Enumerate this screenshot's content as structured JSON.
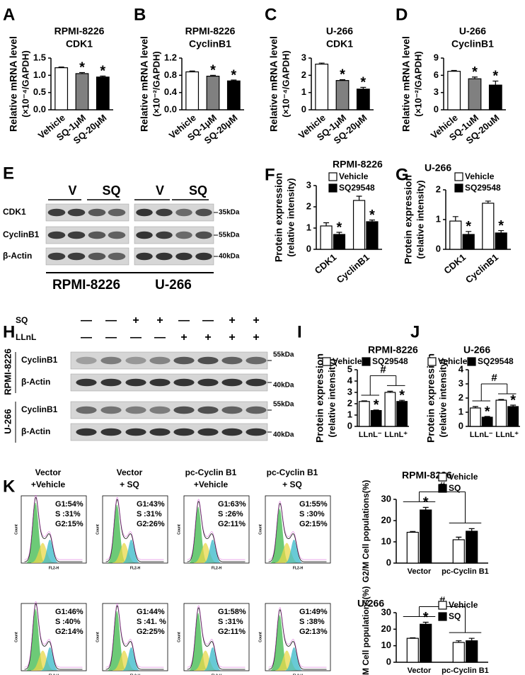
{
  "panel_labels": [
    "A",
    "B",
    "C",
    "D",
    "E",
    "F",
    "G",
    "H",
    "I",
    "J",
    "K"
  ],
  "chart_data": [
    {
      "type": "bar",
      "title": "RPMI-8226",
      "subtitle": "CDK1",
      "y_label": "Relative mRNA level",
      "y_label2": "(×10⁻⁴/GAPDH)",
      "categories": [
        "Vehicle",
        "SQ-1μM",
        "SQ-20μM"
      ],
      "values": [
        1.22,
        1.05,
        0.95
      ],
      "errors": [
        0.02,
        0.03,
        0.03
      ],
      "significance": [
        null,
        "*",
        "*"
      ],
      "colors": [
        "#ffffff",
        "#808080",
        "#000000"
      ],
      "ylim": [
        0,
        1.5
      ],
      "yticks": [
        {
          "value": 0,
          "label": "0.0"
        },
        0.5,
        {
          "value": 1,
          "label": "1.0"
        },
        1.5
      ]
    },
    {
      "type": "bar",
      "title": "RPMI-8226",
      "subtitle": "CyclinB1",
      "y_label": "Relative mRNA level",
      "y_label2": "(×10⁻²/GAPDH)",
      "categories": [
        "Vehicle",
        "SQ-1μM",
        "SQ-20μM"
      ],
      "values": [
        0.88,
        0.78,
        0.67
      ],
      "errors": [
        0.02,
        0.02,
        0.02
      ],
      "significance": [
        null,
        "*",
        "*"
      ],
      "colors": [
        "#ffffff",
        "#808080",
        "#000000"
      ],
      "ylim": [
        0,
        1.2
      ],
      "yticks": [
        {
          "value": 0,
          "label": "0.0"
        },
        0.4,
        0.8,
        1.2
      ]
    },
    {
      "type": "bar",
      "title": "U-266",
      "subtitle": "CDK1",
      "y_label": "Relative mRNA level",
      "y_label2": "(×10⁻⁴/GAPDH)",
      "categories": [
        "Vehicle",
        "SQ-1μM",
        "SQ-20μM"
      ],
      "values": [
        2.65,
        1.7,
        1.2
      ],
      "errors": [
        0.06,
        0.05,
        0.1
      ],
      "significance": [
        null,
        "*",
        "*"
      ],
      "colors": [
        "#ffffff",
        "#808080",
        "#000000"
      ],
      "ylim": [
        0,
        3
      ],
      "yticks": [
        0,
        1,
        2,
        3
      ]
    },
    {
      "type": "bar",
      "title": "U-266",
      "subtitle": "CyclinB1",
      "y_label": "Relative mRNA level",
      "y_label2": "(×10⁻²/GAPDH)",
      "categories": [
        "Vehicle",
        "SQ-1uM",
        "SQ-20uM"
      ],
      "values": [
        6.7,
        5.4,
        4.3
      ],
      "errors": [
        0.15,
        0.3,
        0.7
      ],
      "significance": [
        null,
        "*",
        "*"
      ],
      "colors": [
        "#ffffff",
        "#808080",
        "#000000"
      ],
      "ylim": [
        0,
        9
      ],
      "yticks": [
        0,
        3,
        6,
        9
      ]
    },
    {
      "type": "bar",
      "title": "RPMI-8226",
      "y_label": "Protein expression",
      "y_label2": "(relative intensity)",
      "categories": [
        "CDK1",
        "CyclinB1"
      ],
      "series": [
        {
          "name": "Vehicle",
          "color": "#ffffff",
          "values": [
            1.1,
            2.3
          ],
          "errors": [
            0.15,
            0.2
          ]
        },
        {
          "name": "SQ29548",
          "color": "#000000",
          "values": [
            0.7,
            1.3
          ],
          "errors": [
            0.1,
            0.08
          ],
          "significance": [
            "*",
            "*"
          ]
        }
      ],
      "ylim": [
        0,
        3
      ],
      "yticks": [
        0,
        1,
        2,
        3
      ]
    },
    {
      "type": "bar",
      "title": "U-266",
      "y_label": "Protein expression",
      "y_label2": "(relative intensity)",
      "categories": [
        "CDK1",
        "CyclinB1"
      ],
      "series": [
        {
          "name": "Vehicle",
          "color": "#ffffff",
          "values": [
            0.95,
            1.55
          ],
          "errors": [
            0.15,
            0.07
          ]
        },
        {
          "name": "SQ29548",
          "color": "#000000",
          "values": [
            0.5,
            0.55
          ],
          "errors": [
            0.1,
            0.08
          ],
          "significance": [
            "*",
            "*"
          ]
        }
      ],
      "ylim": [
        0,
        2
      ],
      "yticks": [
        0,
        1,
        2
      ]
    },
    {
      "type": "bar",
      "title": "RPMI-8226",
      "y_label": "Protein expression",
      "y_label2": "(relative intensity)",
      "categories": [
        "LLnL⁻",
        "LLnL⁺"
      ],
      "series": [
        {
          "name": "Vehicle",
          "color": "#ffffff",
          "values": [
            2.2,
            3.0
          ],
          "errors": [
            0.05,
            0.1
          ]
        },
        {
          "name": "SQ29548",
          "color": "#000000",
          "values": [
            1.4,
            2.2
          ],
          "errors": [
            0.05,
            0.1
          ],
          "significance": [
            "*",
            "*"
          ]
        }
      ],
      "bracket": "#",
      "ylim": [
        0,
        5
      ],
      "yticks": [
        0,
        1,
        2,
        3,
        4,
        5
      ]
    },
    {
      "type": "bar",
      "title": "U-266",
      "y_label": "Protein expression",
      "y_label2": "(relative intensity)",
      "categories": [
        "LLnL⁻",
        "LLnL⁺"
      ],
      "series": [
        {
          "name": "Vehicle",
          "color": "#ffffff",
          "values": [
            1.3,
            1.85
          ],
          "errors": [
            0.1,
            0.05
          ]
        },
        {
          "name": "SQ29548",
          "color": "#000000",
          "values": [
            0.65,
            1.4
          ],
          "errors": [
            0.05,
            0.1
          ],
          "significance": [
            "*",
            "*"
          ]
        }
      ],
      "bracket": "#",
      "ylim": [
        0,
        4
      ],
      "yticks": [
        0,
        1,
        2,
        3,
        4
      ]
    },
    {
      "type": "bar",
      "title": "RPMI-8226",
      "y_label": "G2/M Cell populations(%)",
      "categories": [
        "Vector",
        "pc-Cyclin B1"
      ],
      "series": [
        {
          "name": "Vehicle",
          "color": "#ffffff",
          "values": [
            14.5,
            11
          ],
          "errors": [
            0.4,
            1.2
          ]
        },
        {
          "name": "SQ",
          "color": "#000000",
          "values": [
            25,
            15
          ],
          "errors": [
            1.2,
            1.2
          ],
          "significance": [
            "*",
            null
          ]
        }
      ],
      "bracket": "#",
      "ylim": [
        0,
        30
      ],
      "yticks": [
        0,
        10,
        20,
        30
      ]
    },
    {
      "type": "bar",
      "title": "U-266",
      "y_label": "G2/M Cell populations(%)",
      "categories": [
        "Vector",
        "pc-Cyclin B1"
      ],
      "series": [
        {
          "name": "Vehicle",
          "color": "#ffffff",
          "values": [
            14.5,
            12
          ],
          "errors": [
            0.3,
            1
          ]
        },
        {
          "name": "SQ",
          "color": "#000000",
          "values": [
            23,
            13
          ],
          "errors": [
            1.2,
            1.5
          ],
          "significance": [
            "*",
            null
          ]
        }
      ],
      "bracket": "#",
      "ylim": [
        0,
        30
      ],
      "yticks": [
        0,
        10,
        20,
        30
      ]
    }
  ],
  "blot_e": {
    "groups": [
      "V",
      "SQ",
      "V",
      "SQ"
    ],
    "rows": [
      "CDK1",
      "CyclinB1",
      "β-Actin"
    ],
    "sizes": [
      "35kDa",
      "55kDa",
      "40kDa"
    ],
    "cell_lines": [
      "RPMI-8226",
      "U-266"
    ]
  },
  "blot_h": {
    "treatments": [
      "SQ",
      "LLnL"
    ],
    "signs": [
      [
        "—",
        "—",
        "+",
        "+",
        "—",
        "—",
        "+",
        "+"
      ],
      [
        "—",
        "—",
        "—",
        "—",
        "+",
        "+",
        "+",
        "+"
      ]
    ],
    "cell_lines": [
      "RPMI-8226",
      "U-266"
    ],
    "rows": [
      "CyclinB1",
      "β-Actin"
    ],
    "sizes": [
      "55kDa",
      "40kDa"
    ]
  },
  "flow": {
    "columns": [
      [
        "Vector",
        "+Vehicle"
      ],
      [
        "Vector",
        "+ SQ"
      ],
      [
        "pc-Cyclin B1",
        "+Vehicle"
      ],
      [
        "pc-Cyclin B1",
        "+ SQ"
      ]
    ],
    "phases": [
      "G1",
      "S",
      "G2"
    ],
    "y_axis": "Count",
    "x_axis": "FL2-H",
    "rows": [
      [
        [
          ":54%",
          ":31%",
          ":15%"
        ],
        [
          ":43%",
          ":31%",
          ":26%"
        ],
        [
          ":63%",
          ":26%",
          ":11%"
        ],
        [
          ":55%",
          ":30%",
          ":15%"
        ]
      ],
      [
        [
          ":46%",
          ":40%",
          ":14%"
        ],
        [
          ":44%",
          ":41. %",
          ":25%"
        ],
        [
          ":58%",
          ":31%",
          ":11%"
        ],
        [
          ":49%",
          ":38%",
          ":13%"
        ]
      ]
    ]
  }
}
